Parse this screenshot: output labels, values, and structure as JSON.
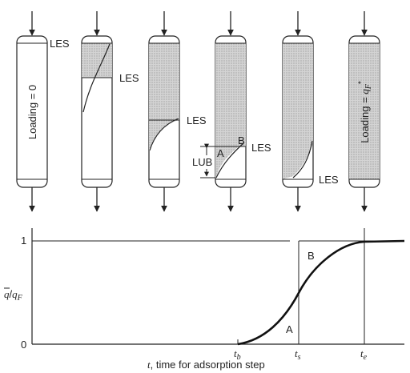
{
  "columns": {
    "les_label": "LES",
    "lub_label": "LUB",
    "point_a": "A",
    "point_b": "B",
    "loading_zero": "Loading = 0",
    "loading_full_prefix": "Loading = ",
    "loading_full_q": "q",
    "loading_full_sub": "F",
    "loading_full_sup": "*"
  },
  "chart": {
    "y_label_q": "q",
    "y_label_slash": "/",
    "y_label_qf": "q",
    "y_label_f": "F",
    "y_tick_1": "1",
    "y_tick_0": "0",
    "region_a": "A",
    "region_b": "B",
    "t_b": "t",
    "t_b_sub": "b",
    "t_s": "t",
    "t_s_sub": "s",
    "t_e": "t",
    "t_e_sub": "e",
    "xlabel_t": "t",
    "xlabel_rest": ", time for adsorption step"
  }
}
